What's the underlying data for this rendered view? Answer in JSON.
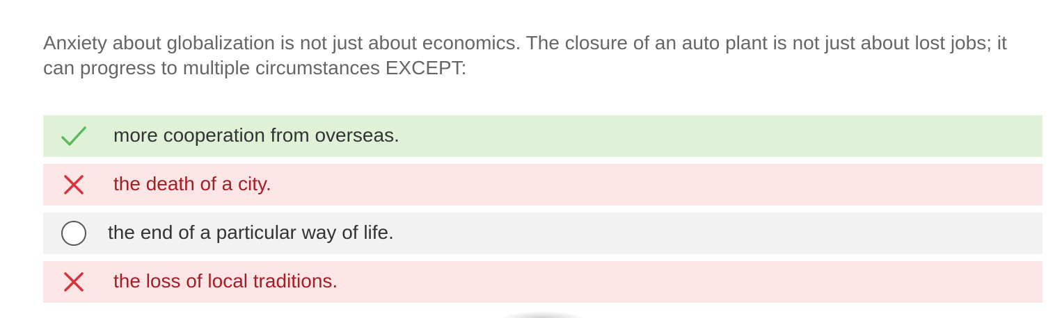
{
  "question": {
    "text": "Anxiety about globalization is not just about economics. The closure of an auto plant is not just about lost jobs; it can progress to multiple circumstances EXCEPT:"
  },
  "options": [
    {
      "label": "more cooperation from overseas.",
      "state": "correct",
      "icon": "check-icon",
      "color": "#5cb85c"
    },
    {
      "label": "the death of a city.",
      "state": "wrong",
      "icon": "cross-icon",
      "color": "#d9323a"
    },
    {
      "label": "the end of a particular way of life.",
      "state": "unselected",
      "icon": "radio-icon",
      "color": "#555555"
    },
    {
      "label": "the loss of local traditions.",
      "state": "wrong",
      "icon": "cross-icon",
      "color": "#d9323a"
    }
  ],
  "colors": {
    "correct_bg": "#dff2d8",
    "wrong_bg": "#fbe5e5",
    "neutral_bg": "#f2f2f2",
    "wrong_text": "#a51d25"
  }
}
